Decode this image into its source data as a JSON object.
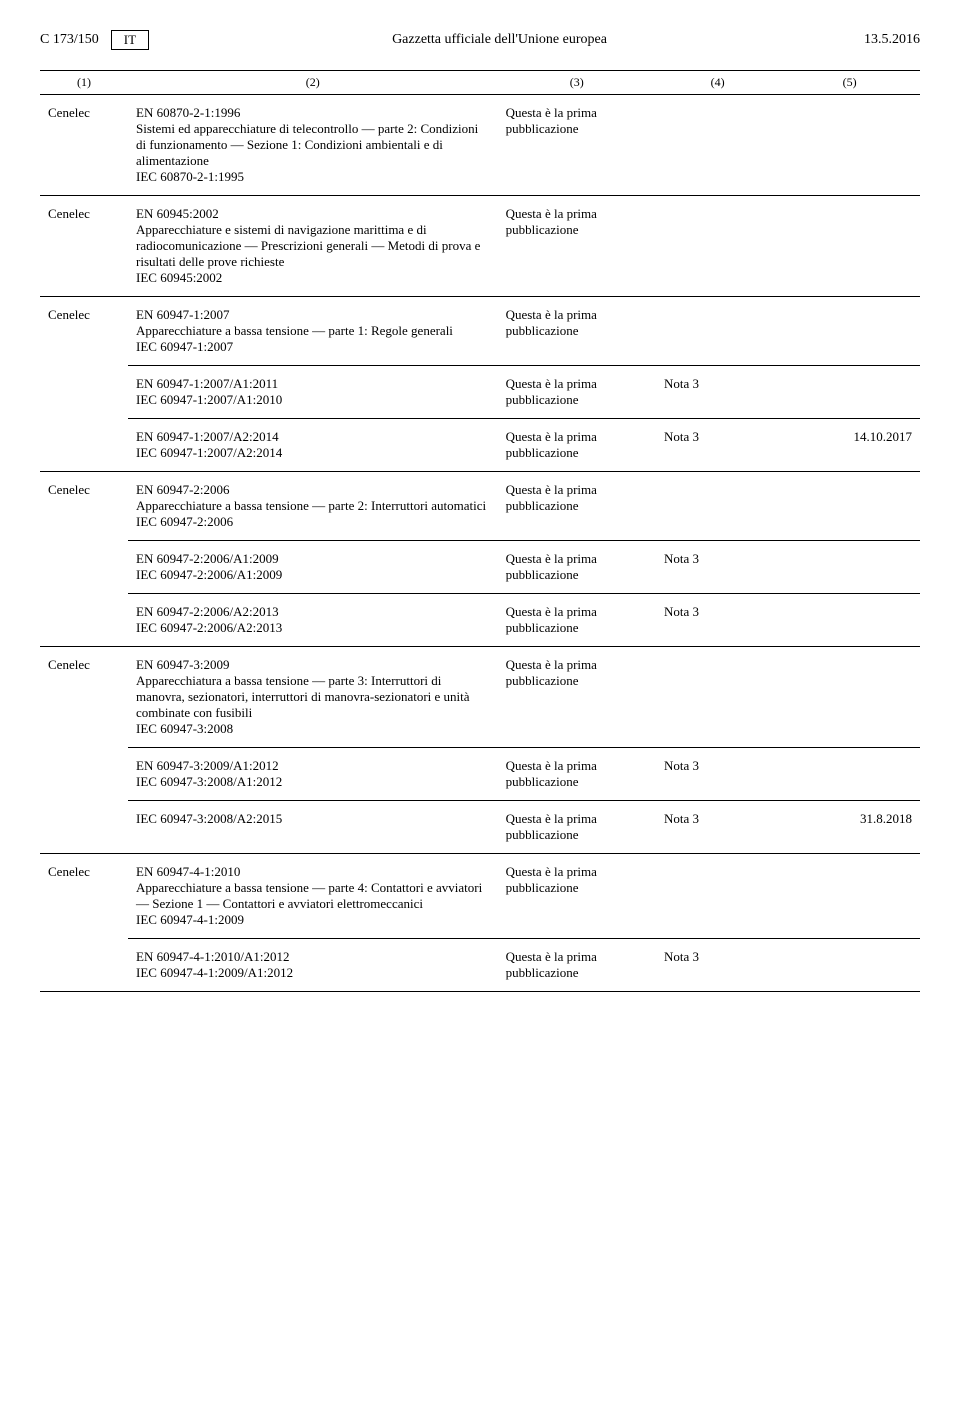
{
  "header": {
    "page_ref": "C 173/150",
    "lang": "IT",
    "title": "Gazzetta ufficiale dell'Unione europea",
    "date": "13.5.2016"
  },
  "colnums": {
    "c1": "(1)",
    "c2": "(2)",
    "c3": "(3)",
    "c4": "(4)",
    "c5": "(5)"
  },
  "labels": {
    "cenelec": "Cenelec",
    "prima": "Questa è la prima",
    "pubb": "pubblicazione",
    "nota3": "Nota 3"
  },
  "rows": {
    "r1": {
      "title": "EN 60870-2-1:1996",
      "desc": "Sistemi ed apparecchiature di telecontrollo — parte 2: Condizioni di funzionamento — Sezione 1: Condizioni ambientali e di alimentazione",
      "iec": "IEC 60870-2-1:1995"
    },
    "r2": {
      "title": "EN 60945:2002",
      "desc": "Apparecchiature e sistemi di navigazione marittima e di radiocomunicazione — Prescrizioni generali — Metodi di prova e risultati delle prove richieste",
      "iec": "IEC 60945:2002"
    },
    "r3": {
      "title": "EN 60947-1:2007",
      "desc": "Apparecchiature a bassa tensione — parte 1: Regole generali",
      "iec": "IEC 60947-1:2007"
    },
    "r3a": {
      "title": "EN 60947-1:2007/A1:2011",
      "iec": "IEC 60947-1:2007/A1:2010"
    },
    "r3b": {
      "title": "EN 60947-1:2007/A2:2014",
      "iec": "IEC 60947-1:2007/A2:2014",
      "date": "14.10.2017"
    },
    "r4": {
      "title": "EN 60947-2:2006",
      "desc": "Apparecchiature a bassa tensione — parte 2: Interruttori automatici",
      "iec": "IEC 60947-2:2006"
    },
    "r4a": {
      "title": "EN 60947-2:2006/A1:2009",
      "iec": "IEC 60947-2:2006/A1:2009"
    },
    "r4b": {
      "title": "EN 60947-2:2006/A2:2013",
      "iec": "IEC 60947-2:2006/A2:2013"
    },
    "r5": {
      "title": "EN 60947-3:2009",
      "desc": "Apparecchiatura a bassa tensione — parte 3: Interruttori di manovra, sezionatori, interruttori di manovra-sezionatori e unità combinate con fusibili",
      "iec": "IEC 60947-3:2008"
    },
    "r5a": {
      "title": "EN 60947-3:2009/A1:2012",
      "iec": "IEC 60947-3:2008/A1:2012"
    },
    "r5b": {
      "iec": "IEC 60947-3:2008/A2:2015",
      "date": "31.8.2018"
    },
    "r6": {
      "title": "EN 60947-4-1:2010",
      "desc": "Apparecchiature a bassa tensione — parte 4: Contattori e avviatori — Sezione 1 — Contattori e avviatori elettromeccanici",
      "iec": "IEC 60947-4-1:2009"
    },
    "r6a": {
      "title": "EN 60947-4-1:2010/A1:2012",
      "iec": "IEC 60947-4-1:2009/A1:2012"
    }
  }
}
